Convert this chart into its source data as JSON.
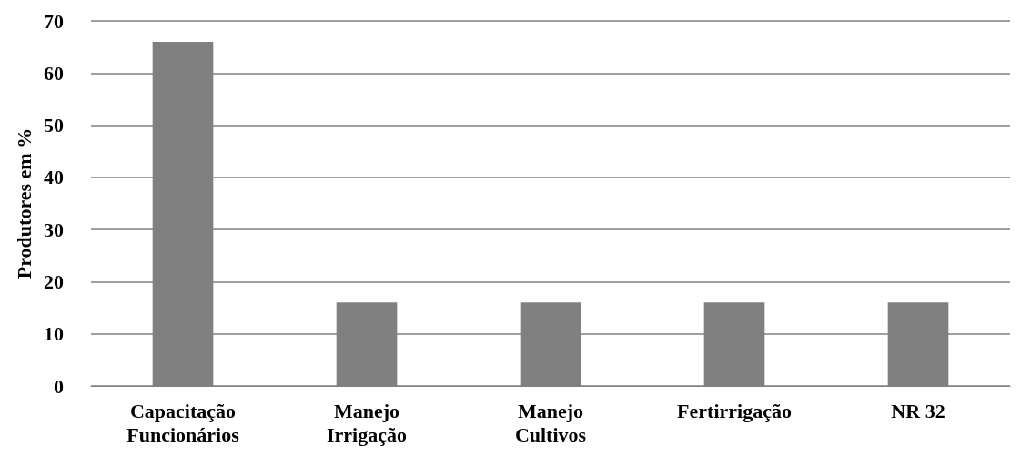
{
  "chart_data": {
    "type": "bar",
    "ylabel": "Produtores em %",
    "categories": [
      "Capacitação\nFuncionários",
      "Manejo\nIrrigação",
      "Manejo\nCultivos",
      "Fertirrigação",
      "NR 32"
    ],
    "values": [
      66,
      16,
      16,
      16,
      16
    ],
    "color": "#808080",
    "ylim": [
      0,
      70
    ],
    "yticks": [
      0,
      10,
      20,
      30,
      40,
      50,
      60,
      70
    ],
    "grid": "y"
  }
}
